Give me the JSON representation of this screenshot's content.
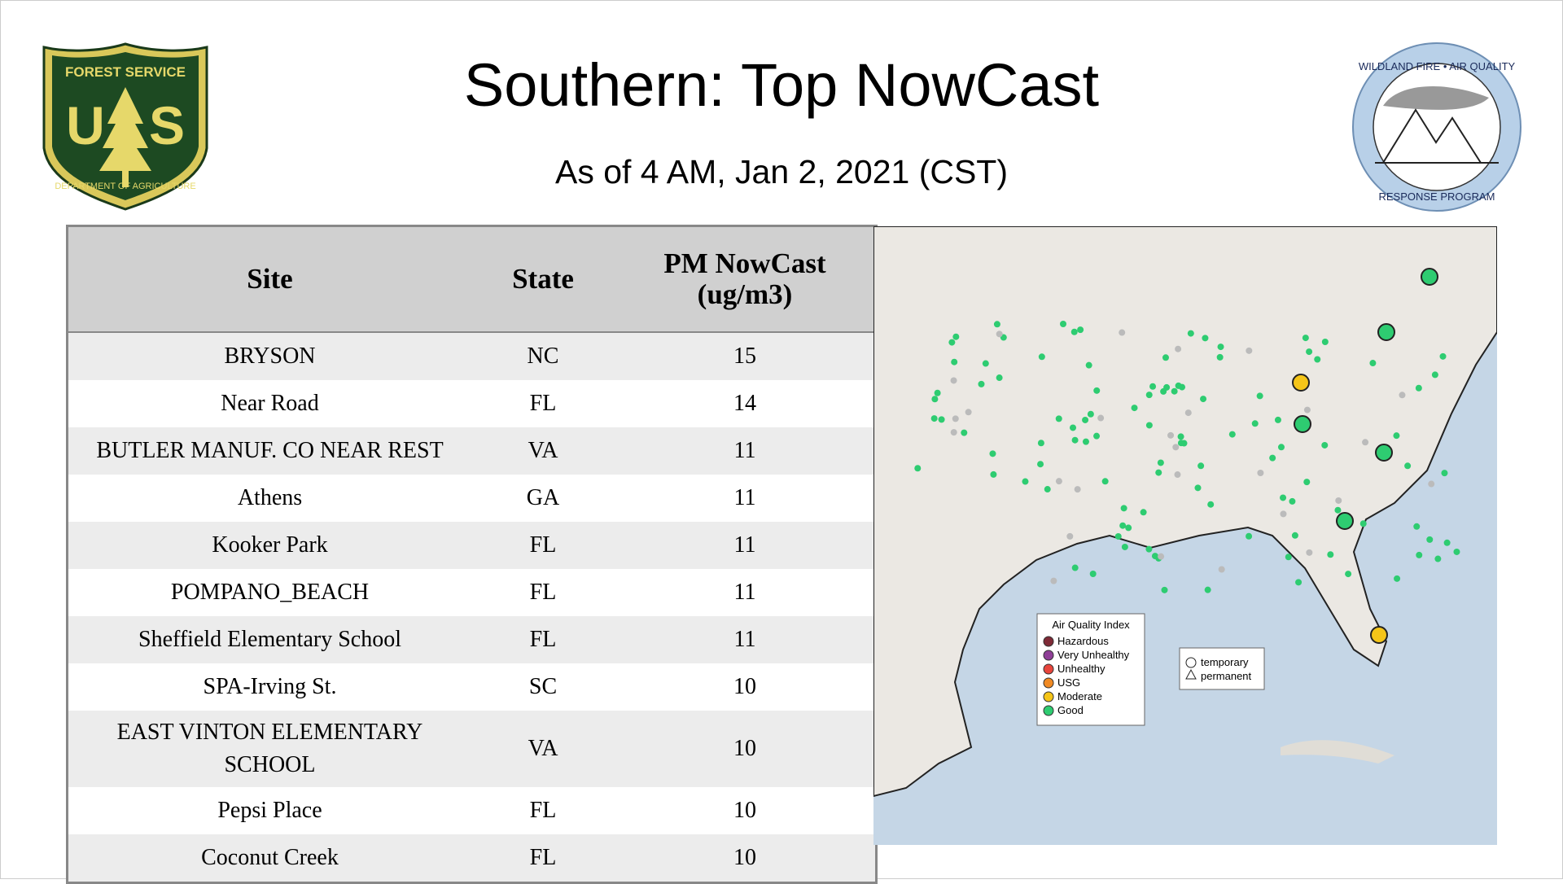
{
  "header": {
    "title": "Southern: Top NowCast",
    "subtitle": "As of  4 AM, Jan  2, 2021 (CST)"
  },
  "logos": {
    "usfs": {
      "top": "FOREST SERVICE",
      "left": "U",
      "right": "S",
      "bottom": "DEPARTMENT OF AGRICULTURE"
    },
    "wfaqrp": {
      "top": "WILDLAND FIRE • AIR QUALITY",
      "bottom": "RESPONSE PROGRAM"
    }
  },
  "table": {
    "columns": [
      "Site",
      "State",
      "PM NowCast (ug/m3)"
    ],
    "rows": [
      [
        "BRYSON",
        "NC",
        "15"
      ],
      [
        "Near Road",
        "FL",
        "14"
      ],
      [
        "BUTLER MANUF. CO NEAR REST",
        "VA",
        "11"
      ],
      [
        "Athens",
        "GA",
        "11"
      ],
      [
        "Kooker Park",
        "FL",
        "11"
      ],
      [
        "POMPANO_BEACH",
        "FL",
        "11"
      ],
      [
        "Sheffield Elementary School",
        "FL",
        "11"
      ],
      [
        "SPA-Irving St.",
        "SC",
        "10"
      ],
      [
        "EAST VINTON ELEMENTARY SCHOOL",
        "VA",
        "10"
      ],
      [
        "Pepsi Place",
        "FL",
        "10"
      ],
      [
        "Coconut Creek",
        "FL",
        "10"
      ]
    ]
  },
  "map": {
    "legend": {
      "title": "Air Quality Index",
      "items": [
        {
          "label": "Hazardous",
          "color": "#7e2a36"
        },
        {
          "label": "Very Unhealthy",
          "color": "#8f3f97"
        },
        {
          "label": "Unhealthy",
          "color": "#e8453c"
        },
        {
          "label": "USG",
          "color": "#f08a24"
        },
        {
          "label": "Moderate",
          "color": "#f5c518"
        },
        {
          "label": "Good",
          "color": "#2ecc71"
        }
      ]
    },
    "monitor_legend": [
      "temporary",
      "permanent"
    ]
  }
}
